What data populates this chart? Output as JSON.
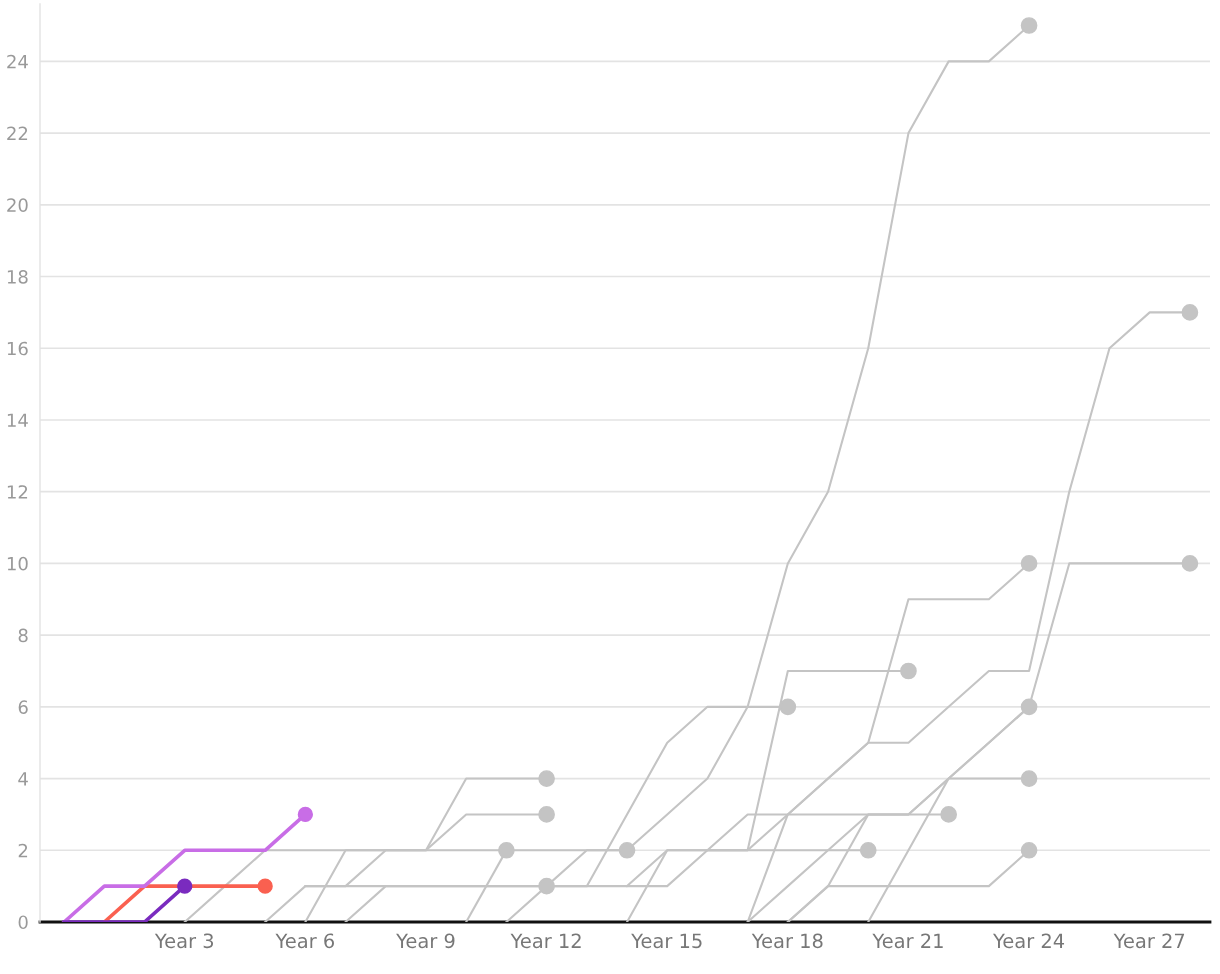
{
  "chart_data": {
    "type": "line",
    "grid": "y",
    "line_style": "solid",
    "categories": [
      null,
      null,
      null,
      "Year 3",
      null,
      null,
      "Year 6",
      null,
      null,
      "Year 9",
      null,
      null,
      "Year 12",
      null,
      null,
      "Year 15",
      null,
      null,
      "Year 18",
      null,
      null,
      "Year 21",
      null,
      null,
      "Year 24",
      null,
      null,
      "Year 27",
      null
    ],
    "ylim": [
      0,
      25.6
    ],
    "yticks": [
      0,
      2,
      4,
      6,
      8,
      10,
      12,
      14,
      16,
      18,
      20,
      22,
      24
    ],
    "series": [
      {
        "color": "#c4c4c4",
        "values": [
          null,
          null,
          null,
          0,
          1,
          2,
          2,
          2,
          2,
          2,
          2,
          2,
          2,
          2,
          2,
          3,
          4,
          6,
          10,
          12,
          16,
          22,
          24,
          24,
          25,
          null,
          null,
          null,
          null
        ]
      },
      {
        "color": "#c4c4c4",
        "values": [
          null,
          null,
          null,
          null,
          null,
          0,
          1,
          1,
          1,
          1,
          1,
          1,
          1,
          null,
          null,
          null,
          null,
          null,
          null,
          null,
          null,
          null,
          null,
          null,
          null,
          null,
          null,
          null,
          null
        ]
      },
      {
        "color": "#c4c4c4",
        "values": [
          null,
          null,
          null,
          null,
          null,
          null,
          0,
          2,
          2,
          2,
          4,
          4,
          4,
          null,
          null,
          null,
          null,
          null,
          null,
          null,
          null,
          null,
          null,
          null,
          null,
          null,
          null,
          null,
          null
        ]
      },
      {
        "color": "#c4c4c4",
        "values": [
          null,
          null,
          null,
          null,
          null,
          null,
          1,
          1,
          2,
          2,
          3,
          3,
          3,
          null,
          null,
          null,
          null,
          null,
          null,
          null,
          null,
          null,
          null,
          null,
          null,
          null,
          null,
          null,
          null
        ]
      },
      {
        "color": "#c4c4c4",
        "values": [
          null,
          null,
          null,
          null,
          null,
          null,
          null,
          0,
          1,
          1,
          1,
          1,
          1,
          1,
          3,
          5,
          6,
          6,
          6,
          null,
          null,
          null,
          null,
          null,
          null,
          null,
          null,
          null,
          null
        ]
      },
      {
        "color": "#c4c4c4",
        "values": [
          null,
          null,
          null,
          null,
          null,
          null,
          null,
          null,
          null,
          null,
          0,
          2,
          null,
          null,
          null,
          null,
          null,
          null,
          null,
          null,
          null,
          null,
          null,
          null,
          null,
          null,
          null,
          null,
          null
        ]
      },
      {
        "color": "#c4c4c4",
        "values": [
          null,
          null,
          null,
          null,
          null,
          null,
          null,
          null,
          null,
          null,
          null,
          0,
          1,
          2,
          2,
          null,
          null,
          null,
          null,
          null,
          null,
          null,
          null,
          null,
          null,
          null,
          null,
          null,
          null
        ]
      },
      {
        "color": "#c4c4c4",
        "values": [
          null,
          null,
          null,
          null,
          null,
          null,
          null,
          null,
          null,
          null,
          null,
          null,
          null,
          null,
          0,
          2,
          2,
          2,
          7,
          7,
          7,
          7,
          null,
          null,
          null,
          null,
          null,
          null,
          null
        ]
      },
      {
        "color": "#c4c4c4",
        "values": [
          null,
          null,
          null,
          null,
          null,
          null,
          null,
          null,
          null,
          null,
          null,
          null,
          null,
          null,
          null,
          null,
          2,
          2,
          3,
          4,
          5,
          5,
          6,
          7,
          7,
          12,
          16,
          17,
          17
        ]
      },
      {
        "color": "#c4c4c4",
        "values": [
          null,
          null,
          null,
          null,
          null,
          null,
          null,
          null,
          null,
          null,
          null,
          null,
          null,
          null,
          null,
          null,
          null,
          null,
          0,
          1,
          3,
          3,
          3,
          null,
          null,
          null,
          null,
          null,
          null
        ]
      },
      {
        "color": "#c4c4c4",
        "values": [
          null,
          null,
          null,
          null,
          null,
          null,
          null,
          null,
          null,
          null,
          null,
          null,
          1,
          1,
          1,
          1,
          2,
          3,
          3,
          4,
          5,
          9,
          9,
          9,
          10,
          null,
          null,
          null,
          null
        ]
      },
      {
        "color": "#c4c4c4",
        "values": [
          null,
          null,
          null,
          null,
          null,
          null,
          null,
          null,
          null,
          null,
          null,
          null,
          null,
          null,
          null,
          null,
          null,
          0,
          3,
          3,
          3,
          3,
          4,
          5,
          6,
          null,
          null,
          null,
          null
        ]
      },
      {
        "color": "#c4c4c4",
        "values": [
          null,
          null,
          null,
          null,
          null,
          null,
          null,
          null,
          null,
          null,
          null,
          null,
          null,
          null,
          null,
          null,
          null,
          0,
          1,
          2,
          3,
          3,
          4,
          4,
          4,
          null,
          null,
          null,
          null
        ]
      },
      {
        "color": "#c4c4c4",
        "values": [
          null,
          null,
          null,
          null,
          null,
          null,
          null,
          null,
          null,
          null,
          null,
          null,
          null,
          null,
          null,
          null,
          null,
          null,
          0,
          1,
          1,
          1,
          1,
          1,
          2,
          null,
          null,
          null,
          null
        ]
      },
      {
        "color": "#c4c4c4",
        "values": [
          null,
          null,
          null,
          null,
          null,
          null,
          null,
          null,
          null,
          null,
          null,
          null,
          null,
          null,
          1,
          2,
          2,
          2,
          2,
          2,
          2,
          null,
          null,
          null,
          null,
          null,
          null,
          null,
          null
        ]
      },
      {
        "color": "#c4c4c4",
        "values": [
          null,
          null,
          null,
          null,
          null,
          null,
          null,
          null,
          null,
          null,
          null,
          null,
          null,
          null,
          null,
          null,
          null,
          null,
          null,
          null,
          0,
          2,
          4,
          5,
          6,
          10,
          10,
          10,
          10
        ]
      },
      {
        "color": "#fa6050",
        "values": [
          null,
          0,
          1,
          1,
          1,
          1,
          null,
          null,
          null,
          null,
          null,
          null,
          null,
          null,
          null,
          null,
          null,
          null,
          null,
          null,
          null,
          null,
          null,
          null,
          null,
          null,
          null,
          null,
          null
        ]
      },
      {
        "color": "#c86de6",
        "values": [
          0,
          1,
          1,
          2,
          2,
          2,
          3,
          null,
          null,
          null,
          null,
          null,
          null,
          null,
          null,
          null,
          null,
          null,
          null,
          null,
          null,
          null,
          null,
          null,
          null,
          null,
          null,
          null,
          null
        ]
      },
      {
        "color": "#7a2bbf",
        "values": [
          0,
          0,
          0,
          1,
          null,
          null,
          null,
          null,
          null,
          null,
          null,
          null,
          null,
          null,
          null,
          null,
          null,
          null,
          null,
          null,
          null,
          null,
          null,
          null,
          null,
          null,
          null,
          null,
          null
        ]
      }
    ]
  }
}
